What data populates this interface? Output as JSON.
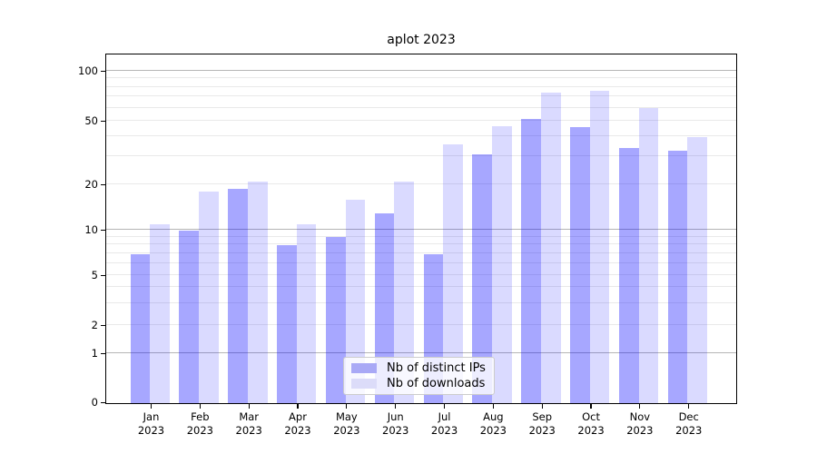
{
  "chart_data": {
    "type": "bar",
    "title": "aplot 2023",
    "categories": [
      "Jan",
      "Feb",
      "Mar",
      "Apr",
      "May",
      "Jun",
      "Jul",
      "Aug",
      "Sep",
      "Oct",
      "Nov",
      "Dec"
    ],
    "year": "2023",
    "yscale": "symlog",
    "yticks": [
      0,
      1,
      2,
      5,
      10,
      20,
      50,
      100
    ],
    "grid": "horizontal, log minor + major decade lines",
    "legend_position": "bottom-center",
    "series": [
      {
        "name": "Nb of distinct IPs",
        "values": [
          7,
          10,
          19,
          8,
          9,
          13,
          7,
          31,
          52,
          46,
          34,
          33
        ]
      },
      {
        "name": "Nb of downloads",
        "values": [
          11,
          18,
          21,
          11,
          16,
          21,
          36,
          47,
          75,
          77,
          60,
          40
        ]
      }
    ]
  },
  "colors": {
    "bar_dark": "rgba(0,0,255,0.345)",
    "bar_light": "rgba(0,0,255,0.145)",
    "legend_swatch_dark": "#a9a9f6",
    "legend_swatch_light": "#dcdcf9",
    "grid_major": "#b5b5b5",
    "grid_minor": "#e9e9e9",
    "spine": "#000000",
    "text": "#000000"
  }
}
